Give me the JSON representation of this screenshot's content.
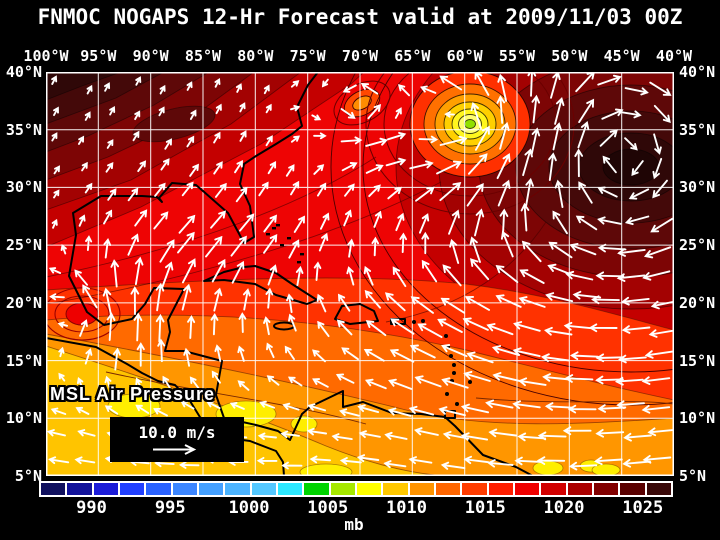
{
  "title": "FNMOC NOGAPS 12-Hr Forecast valid at 2009/11/03 00Z",
  "map": {
    "overlay_label": "MSL Air Pressure",
    "wind_scale_label": "10.0 m/s",
    "axes": {
      "lon_ticks": [
        "100°W",
        "95°W",
        "90°W",
        "85°W",
        "80°W",
        "75°W",
        "70°W",
        "65°W",
        "60°W",
        "55°W",
        "50°W",
        "45°W",
        "40°W"
      ],
      "lat_ticks": [
        "40°N",
        "35°N",
        "30°N",
        "25°N",
        "20°N",
        "15°N",
        "10°N",
        "5°N"
      ]
    }
  },
  "colorbar": {
    "unit": "mb",
    "ticks": [
      "990",
      "995",
      "1000",
      "1005",
      "1010",
      "1015",
      "1020",
      "1025"
    ],
    "colors": [
      "#10105e",
      "#12129a",
      "#1c1cd8",
      "#2240ff",
      "#2a62ff",
      "#3c86ff",
      "#44a0ff",
      "#4cb4ff",
      "#54c8ff",
      "#2ce8ff",
      "#00d400",
      "#a6e800",
      "#ffff00",
      "#ffc800",
      "#ff9400",
      "#ff6600",
      "#ff3c00",
      "#ff1e00",
      "#f00000",
      "#d20000",
      "#ac0000",
      "#820000",
      "#5a0000",
      "#390808"
    ]
  },
  "chart_data": {
    "type": "heatmap",
    "title": "FNMOC NOGAPS 12-Hr Forecast valid at 2009/11/03 00Z",
    "model": "FNMOC NOGAPS",
    "forecast_hour": 12,
    "valid_time": "2009/11/03 00Z",
    "variable": "MSL Air Pressure",
    "unit": "mb",
    "x_axis": {
      "label": "longitude",
      "ticks": [
        "100°W",
        "95°W",
        "90°W",
        "85°W",
        "80°W",
        "75°W",
        "70°W",
        "65°W",
        "60°W",
        "55°W",
        "50°W",
        "45°W",
        "40°W"
      ]
    },
    "y_axis": {
      "label": "latitude",
      "ticks": [
        "40°N",
        "35°N",
        "30°N",
        "25°N",
        "20°N",
        "15°N",
        "10°N",
        "5°N"
      ]
    },
    "grid": "5 degree white graticule",
    "colorbar_tick_values_mb": [
      990,
      995,
      1000,
      1005,
      1010,
      1015,
      1020,
      1025
    ],
    "colorbar_range_mb": [
      986.7,
      1026.7
    ],
    "colorbar_cells": 24,
    "wind_reference_vector_mps": 10.0,
    "wind_overlay": "white wind vectors, trade easterlies south of 20N, anticyclonic flow around NE high, cyclonic flow around 59.5W low",
    "pressure_features": [
      {
        "feature": "closed low (bullseye, green-yellow core)",
        "lon": "59.5°W",
        "lat": "35.5°N",
        "approx_center_mb": 1004
      },
      {
        "feature": "weak low (orange core)",
        "lon": "71.5°W",
        "lat": "37.3°N",
        "approx_center_mb": 1011
      },
      {
        "feature": "subtropical high (dark maroon)",
        "lon": "47°W",
        "lat": "33°N",
        "approx_center_mb": 1027
      },
      {
        "feature": "continental high (NW corner, dark maroon)",
        "lon": "97°W",
        "lat": "39°N",
        "approx_center_mb": 1026
      },
      {
        "feature": "Tehuantepec-area low (red rings)",
        "lon": "96.5°W",
        "lat": "19°N",
        "approx_center_mb": 1014
      },
      {
        "feature": "tropical band 5-12°N",
        "approx_mb": "1008-1012, gold/yellow patches ~1007"
      }
    ]
  }
}
